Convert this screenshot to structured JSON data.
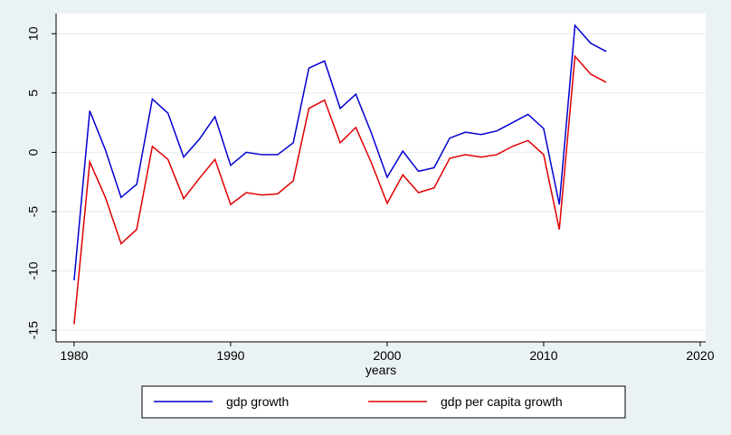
{
  "chart_data": {
    "type": "line",
    "x": [
      1980,
      1981,
      1982,
      1983,
      1984,
      1985,
      1986,
      1987,
      1988,
      1989,
      1990,
      1991,
      1992,
      1993,
      1994,
      1995,
      1996,
      1997,
      1998,
      1999,
      2000,
      2001,
      2002,
      2003,
      2004,
      2005,
      2006,
      2007,
      2008,
      2009,
      2010,
      2011,
      2012,
      2013,
      2014
    ],
    "series": [
      {
        "name": "gdp growth",
        "color": "#0000d0",
        "values": [
          -10.8,
          3.5,
          0.2,
          -3.8,
          -2.7,
          4.5,
          3.3,
          -0.4,
          1.1,
          3.0,
          -1.1,
          0.0,
          -0.2,
          -0.2,
          0.8,
          7.1,
          7.7,
          3.7,
          4.9,
          1.6,
          -2.1,
          0.1,
          -1.6,
          -1.3,
          1.2,
          1.7,
          1.5,
          1.8,
          2.5,
          3.2,
          2.0,
          -4.4,
          10.7,
          9.2,
          8.5
        ]
      },
      {
        "name": "gdp per capita growth",
        "color": "#e00000",
        "values": [
          -14.5,
          -0.8,
          -3.8,
          -7.7,
          -6.5,
          0.5,
          -0.6,
          -3.9,
          -2.2,
          -0.6,
          -4.4,
          -3.4,
          -3.6,
          -3.5,
          -2.4,
          3.7,
          4.4,
          0.8,
          2.1,
          -0.9,
          -4.3,
          -1.9,
          -3.4,
          -3.0,
          -0.5,
          -0.2,
          -0.4,
          -0.2,
          0.5,
          1.0,
          -0.2,
          -6.5,
          8.1,
          6.6,
          5.9
        ]
      }
    ],
    "x_label": "years",
    "xlim": [
      1978.85,
      2020.35
    ],
    "xticks": [
      1980,
      1990,
      2000,
      2010,
      2020
    ],
    "ylim": [
      -15.98,
      11.7
    ],
    "yticks": [
      -15,
      -10,
      -5,
      0,
      5,
      10
    ],
    "grid": true,
    "legend": "bottom"
  }
}
